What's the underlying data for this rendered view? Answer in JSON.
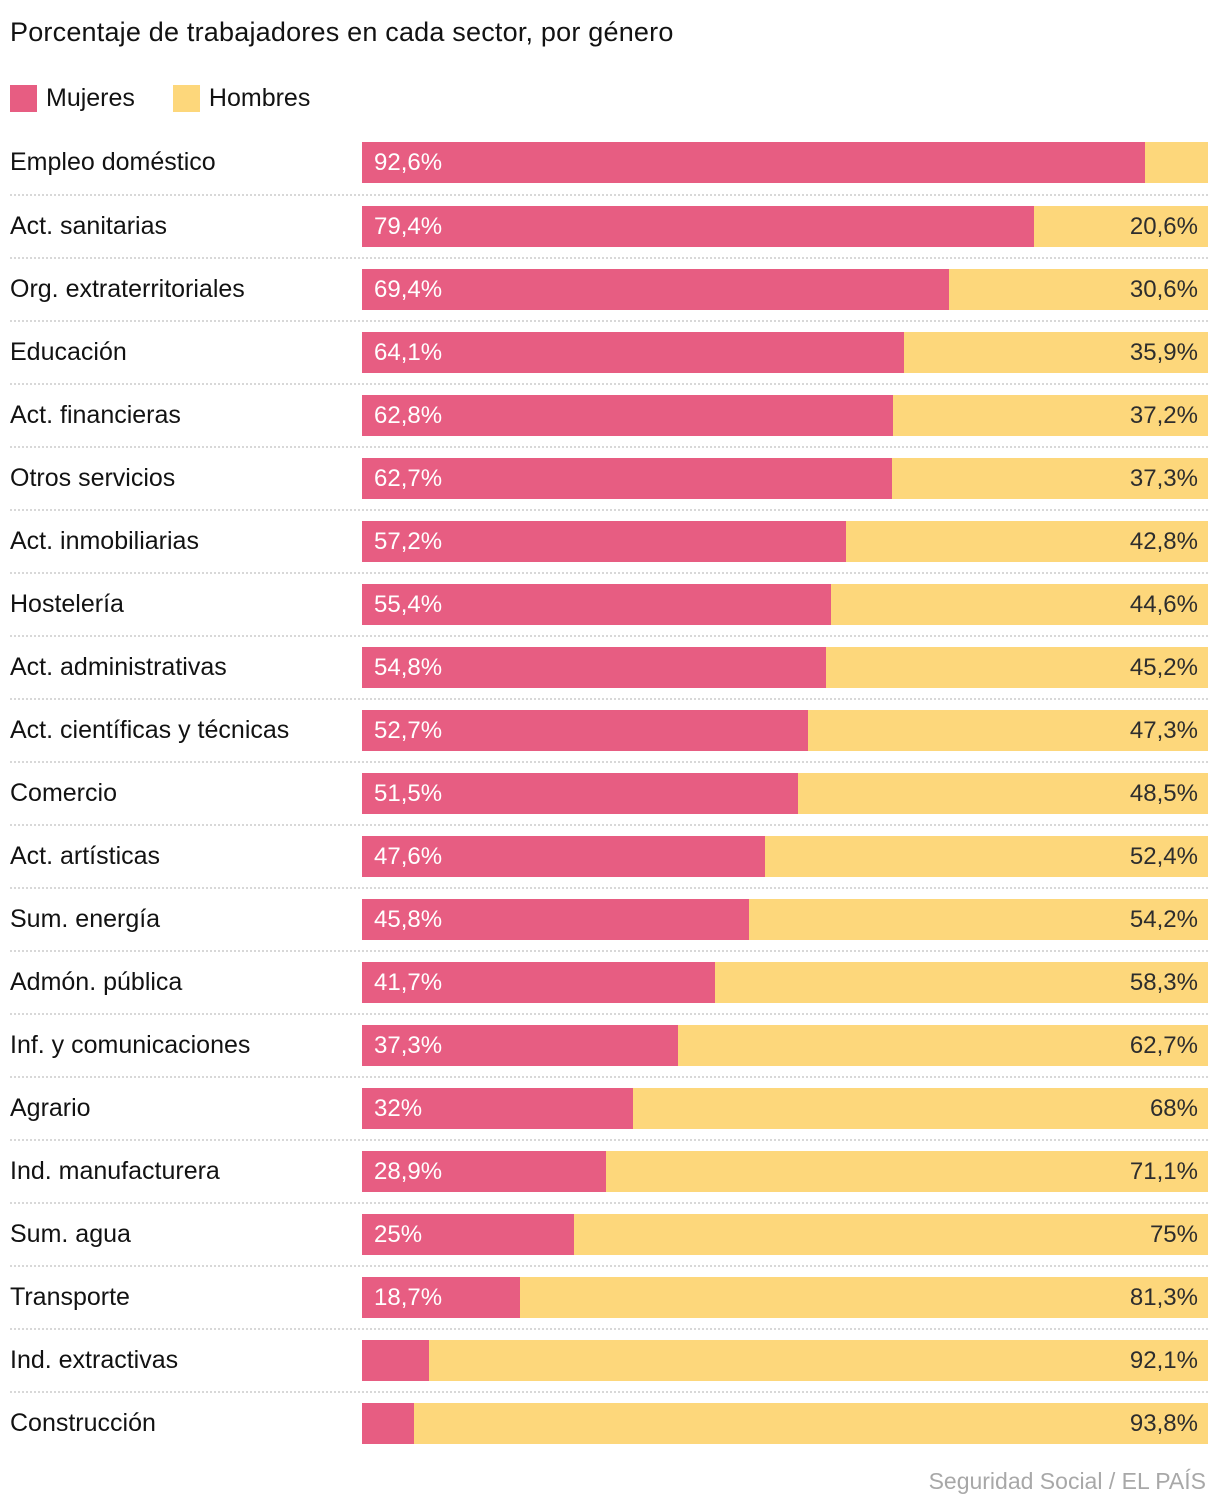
{
  "header": {
    "title": "Porcentaje de trabajadores en cada sector, por género"
  },
  "legend": {
    "items": [
      {
        "label": "Mujeres",
        "color": "#e75d82"
      },
      {
        "label": "Hombres",
        "color": "#fdd77b"
      }
    ]
  },
  "footer": {
    "source": "Seguridad Social / EL PAÍS"
  },
  "chart_data": {
    "type": "bar",
    "orientation": "horizontal",
    "stacked": true,
    "title": "Porcentaje de trabajadores en cada sector, por género",
    "xlim": [
      0,
      100
    ],
    "grid": false,
    "legend_position": "top-left",
    "categories": [
      "Empleo doméstico",
      "Act. sanitarias",
      "Org. extraterritoriales",
      "Educación",
      "Act. financieras",
      "Otros servicios",
      "Act. inmobiliarias",
      "Hostelería",
      "Act. administrativas",
      "Act. científicas y técnicas",
      "Comercio",
      "Act. artísticas",
      "Sum. energía",
      "Admón. pública",
      "Inf. y comunicaciones",
      "Agrario",
      "Ind. manufacturera",
      "Sum. agua",
      "Transporte",
      "Ind. extractivas",
      "Construcción"
    ],
    "series": [
      {
        "name": "Mujeres",
        "color": "#e75d82",
        "values": [
          92.6,
          79.4,
          69.4,
          64.1,
          62.8,
          62.7,
          57.2,
          55.4,
          54.8,
          52.7,
          51.5,
          47.6,
          45.8,
          41.7,
          37.3,
          32,
          28.9,
          25,
          18.7,
          7.9,
          6.2
        ]
      },
      {
        "name": "Hombres",
        "color": "#fdd77b",
        "values": [
          7.4,
          20.6,
          30.6,
          35.9,
          37.2,
          37.3,
          42.8,
          44.6,
          45.2,
          47.3,
          48.5,
          52.4,
          54.2,
          58.3,
          62.7,
          68,
          71.1,
          75,
          81.3,
          92.1,
          93.8
        ]
      }
    ],
    "value_labels": {
      "mujeres": [
        "92,6%",
        "79,4%",
        "69,4%",
        "64,1%",
        "62,8%",
        "62,7%",
        "57,2%",
        "55,4%",
        "54,8%",
        "52,7%",
        "51,5%",
        "47,6%",
        "45,8%",
        "41,7%",
        "37,3%",
        "32%",
        "28,9%",
        "25%",
        "18,7%",
        "",
        ""
      ],
      "hombres": [
        "",
        "20,6%",
        "30,6%",
        "35,9%",
        "37,2%",
        "37,3%",
        "42,8%",
        "44,6%",
        "45,2%",
        "47,3%",
        "48,5%",
        "52,4%",
        "54,2%",
        "58,3%",
        "62,7%",
        "68%",
        "71,1%",
        "75%",
        "81,3%",
        "92,1%",
        "93,8%"
      ]
    }
  }
}
